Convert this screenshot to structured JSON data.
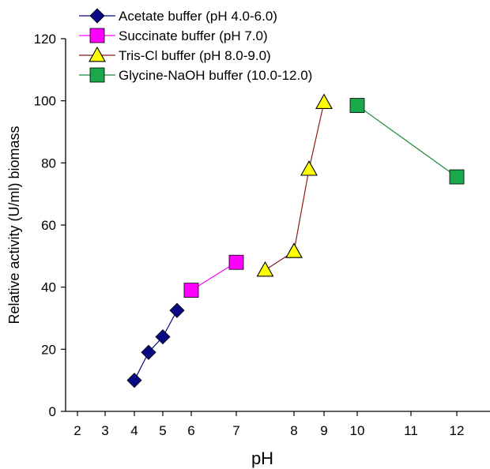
{
  "chart_data": {
    "type": "line",
    "xlabel": "pH",
    "ylabel": "Relative activity (U/ml) biomass",
    "xlim": [
      2,
      12.5
    ],
    "ylim": [
      0,
      120
    ],
    "x_tick_labels": [
      "2",
      "3",
      "4",
      "5",
      "6",
      "7",
      "8",
      "9",
      "10",
      "11",
      "12"
    ],
    "y_tick_labels": [
      "0",
      "20",
      "40",
      "60",
      "80",
      "100",
      "120"
    ],
    "y_ticks": [
      0,
      20,
      40,
      60,
      80,
      100,
      120
    ],
    "legend_position": "top-left",
    "series": [
      {
        "name": "Acetate buffer (pH 4.0-6.0)",
        "marker": "diamond",
        "marker_color": "#0a0a82",
        "line_color": "#0a0a82",
        "points": [
          {
            "x": 4.0,
            "y": 10
          },
          {
            "x": 4.5,
            "y": 19
          },
          {
            "x": 5.0,
            "y": 24
          },
          {
            "x": 5.5,
            "y": 32.5
          }
        ]
      },
      {
        "name": "Succinate buffer (pH 7.0)",
        "marker": "square",
        "marker_color": "#ff00ff",
        "line_color": "#ff00ff",
        "points": [
          {
            "x": 6.0,
            "y": 39
          },
          {
            "x": 7.0,
            "y": 48
          }
        ]
      },
      {
        "name": "Tris-Cl buffer (pH 8.0-9.0)",
        "marker": "triangle",
        "marker_color": "#ffff00",
        "line_color": "#8b1a1a",
        "points": [
          {
            "x": 7.5,
            "y": 45.5
          },
          {
            "x": 8.0,
            "y": 51.5
          },
          {
            "x": 8.5,
            "y": 78
          },
          {
            "x": 9.0,
            "y": 99.5
          }
        ]
      },
      {
        "name": "Glycine-NaOH buffer (10.0-12.0)",
        "marker": "square",
        "marker_color": "#1aa84a",
        "line_color": "#1a8a3a",
        "points": [
          {
            "x": 10.0,
            "y": 98.5
          },
          {
            "x": 12.0,
            "y": 75.5
          }
        ]
      }
    ]
  }
}
